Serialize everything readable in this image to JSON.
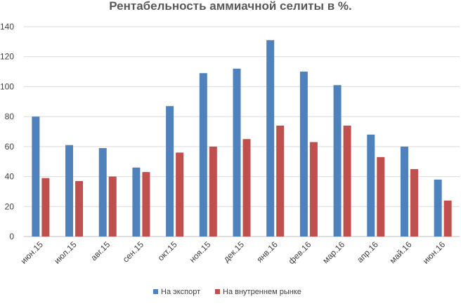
{
  "chart_data": {
    "type": "bar",
    "title": "Рентабельность аммиачной селиты в %.",
    "xlabel": "",
    "ylabel": "",
    "ylim": [
      0,
      140
    ],
    "yticks": [
      "0",
      "20",
      "40",
      "60",
      "80",
      "100",
      "120",
      "140"
    ],
    "grid": true,
    "legend_position": "bottom",
    "categories": [
      "июн.15",
      "июл.15",
      "авг.15",
      "сен.15",
      "окт.15",
      "ноя.15",
      "дек.15",
      "янв.16",
      "фев.16",
      "мар.16",
      "апр.16",
      "май.16",
      "июн.16"
    ],
    "series": [
      {
        "name": "На экспорт",
        "color": "#4f81bd",
        "values": [
          80,
          61,
          59,
          46,
          87,
          109,
          112,
          131,
          110,
          101,
          68,
          60,
          38
        ]
      },
      {
        "name": "На внутреннем рынке",
        "color": "#c0504d",
        "values": [
          39,
          37,
          40,
          43,
          56,
          60,
          65,
          74,
          63,
          74,
          53,
          45,
          24
        ]
      }
    ]
  }
}
